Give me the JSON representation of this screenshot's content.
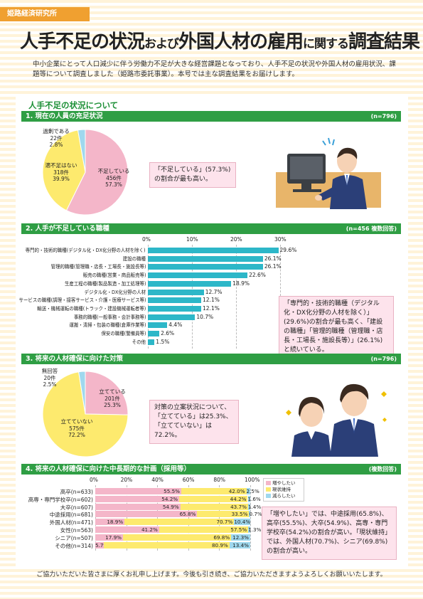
{
  "header": {
    "badge": "姫路経済研究所",
    "title_a": "人手不足の状況",
    "title_b": "および",
    "title_c": "外国人材の雇用",
    "title_d": "に関する",
    "title_e": "調査結果",
    "intro": "中小企業にとって人口減少に伴う労働力不足が大きな経営課題となっており、人手不足の状況や外国人材の雇用状況、課題等について調査しました（姫路市委託事業）。本号では主な調査結果をお届けします。"
  },
  "section_title": "人手不足の状況について",
  "colors": {
    "green": "#2f9e44",
    "pink": "#f4b6c9",
    "yellow": "#fdea6e",
    "cyan": "#2db7c8",
    "blue": "#9fd8ee"
  },
  "sec1": {
    "head": "1. 現在の人員の充足状況",
    "n": "(n=796)",
    "labels": [
      {
        "name": "不足している",
        "count": "456件",
        "pct": "57.3%"
      },
      {
        "name": "適不足はない",
        "count": "318件",
        "pct": "39.9%"
      },
      {
        "name": "過剰である",
        "count": "22件",
        "pct": "2.8%"
      }
    ],
    "note": "「不足している」(57.3%)の割合が最も高い。"
  },
  "chart_data": [
    {
      "type": "pie",
      "categories": [
        "不足している",
        "適不足はない",
        "過剰である"
      ],
      "values": [
        57.3,
        39.9,
        2.8
      ],
      "counts": [
        456,
        318,
        22
      ]
    },
    {
      "type": "bar",
      "categories": [
        "専門的・技術的職種(デジタル化・DX化分野の人材を除く)",
        "建設の職種",
        "管理的職種(管理職・店長・工場長・施設長等)",
        "販売の職種(営業・商品販売等)",
        "生産工程の職種(製品製造・加工処理等)",
        "デジタル化・DX化分野の人材",
        "サービスの職種(調理・接客サービス・介護・医療サービス等)",
        "輸送・機械運転の職種(トラック・建設機械運転者等)",
        "事務的職種(一般事務・会計事務等)",
        "運搬・清掃・包装の職種(倉庫作業等)",
        "保安の職種(警備員等)",
        "その他"
      ],
      "values": [
        29.6,
        26.1,
        26.1,
        22.6,
        18.9,
        12.7,
        12.1,
        12.1,
        10.7,
        4.4,
        2.6,
        1.5
      ],
      "ticks": [
        "0%",
        "10%",
        "20%",
        "30%"
      ],
      "xlim": [
        0,
        30
      ]
    },
    {
      "type": "pie",
      "categories": [
        "立てている",
        "立てていない",
        "無回答"
      ],
      "values": [
        25.3,
        72.2,
        2.5
      ],
      "counts": [
        201,
        575,
        20
      ]
    },
    {
      "type": "bar",
      "stacked": true,
      "categories": [
        "高卒(n=633)",
        "高専・専門学校卒(n=602)",
        "大卒(n=607)",
        "中途採用(n=681)",
        "外国人材(n=471)",
        "女性(n=563)",
        "シニア(n=507)",
        "その他(n=314)"
      ],
      "series": [
        {
          "name": "増やしたい",
          "values": [
            55.5,
            54.2,
            54.9,
            65.8,
            18.9,
            41.2,
            17.9,
            5.7
          ]
        },
        {
          "name": "現状維持",
          "values": [
            42.0,
            44.2,
            43.7,
            33.5,
            70.7,
            57.5,
            69.8,
            80.9
          ]
        },
        {
          "name": "減らしたい",
          "values": [
            2.5,
            1.6,
            1.4,
            0.7,
            10.4,
            1.3,
            12.3,
            13.4
          ]
        }
      ],
      "ticks": [
        "0%",
        "20%",
        "40%",
        "60%",
        "80%",
        "100%"
      ],
      "xlim": [
        0,
        100
      ]
    }
  ],
  "sec2": {
    "head": "2. 人手が不足している職種",
    "n": "(n=456 複数回答)",
    "values_text": [
      "29.6%",
      "26.1%",
      "26.1%",
      "22.6%",
      "18.9%",
      "12.7%",
      "12.1%",
      "12.1%",
      "10.7%",
      "4.4%",
      "2.6%",
      "1.5%"
    ],
    "note": "「専門的・技術的職種（デジタル化・DX化分野の人材を除く）」(29.6%)の割合が最も高く、「建設の職種」「管理的職種（管理職・店長・工場長・施設長等）」(26.1%)と続いている。"
  },
  "sec3": {
    "head": "3. 将来の人材確保に向けた対策",
    "n": "(n=796)",
    "labels": [
      {
        "name": "立てている",
        "count": "201件",
        "pct": "25.3%"
      },
      {
        "name": "立てていない",
        "count": "575件",
        "pct": "72.2%"
      },
      {
        "name": "無回答",
        "count": "20件",
        "pct": "2.5%"
      }
    ],
    "note": "対策の立案状況について、「立てている」は25.3%、「立てていない」は72.2%。"
  },
  "sec4": {
    "head": "4. 将来の人材確保に向けた中長期的な計画（採用等）",
    "n": "(複数回答)",
    "values_text": [
      [
        "55.5%",
        "42.0%",
        "2.5%"
      ],
      [
        "54.2%",
        "44.2%",
        "1.6%"
      ],
      [
        "54.9%",
        "43.7%",
        "1.4%"
      ],
      [
        "65.8%",
        "33.5%",
        "0.7%"
      ],
      [
        "18.9%",
        "70.7%",
        "10.4%"
      ],
      [
        "41.2%",
        "57.5%",
        "1.3%"
      ],
      [
        "17.9%",
        "69.8%",
        "12.3%"
      ],
      [
        "5.7%",
        "80.9%",
        "13.4%"
      ]
    ],
    "note": "「増やしたい」では、中途採用(65.8%)、高卒(55.5%)、大卒(54.9%)、高専・専門学校卒(54.2%)の割合が高い。「現状維持」では、外国人材(70.7%)、シニア(69.8%)の割合が高い。"
  },
  "footer": "ご協力いただいた皆さまに厚くお礼申し上げます。今後も引き続き、ご協力いただきますようよろしくお願いいたします。"
}
